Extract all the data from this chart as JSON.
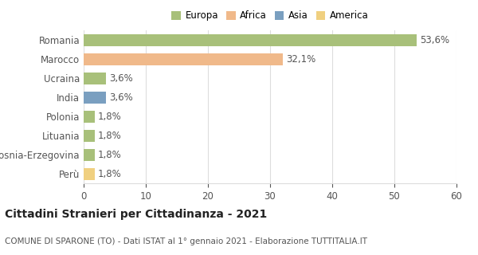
{
  "categories": [
    "Romania",
    "Marocco",
    "Ucraina",
    "India",
    "Polonia",
    "Lituania",
    "Bosnia-Erzegovina",
    "Perù"
  ],
  "values": [
    53.6,
    32.1,
    3.6,
    3.6,
    1.8,
    1.8,
    1.8,
    1.8
  ],
  "labels": [
    "53,6%",
    "32,1%",
    "3,6%",
    "3,6%",
    "1,8%",
    "1,8%",
    "1,8%",
    "1,8%"
  ],
  "colors": [
    "#a8c07a",
    "#f0b98a",
    "#a8c07a",
    "#7a9fc0",
    "#a8c07a",
    "#a8c07a",
    "#a8c07a",
    "#f0d080"
  ],
  "legend_labels": [
    "Europa",
    "Africa",
    "Asia",
    "America"
  ],
  "legend_colors": [
    "#a8c07a",
    "#f0b98a",
    "#7a9fc0",
    "#f0d080"
  ],
  "xlim": [
    0,
    60
  ],
  "xticks": [
    0,
    10,
    20,
    30,
    40,
    50,
    60
  ],
  "title": "Cittadini Stranieri per Cittadinanza - 2021",
  "subtitle": "COMUNE DI SPARONE (TO) - Dati ISTAT al 1° gennaio 2021 - Elaborazione TUTTITALIA.IT",
  "background_color": "#ffffff",
  "grid_color": "#dddddd",
  "bar_height": 0.6,
  "label_fontsize": 8.5,
  "title_fontsize": 10,
  "subtitle_fontsize": 7.5,
  "tick_fontsize": 8.5
}
